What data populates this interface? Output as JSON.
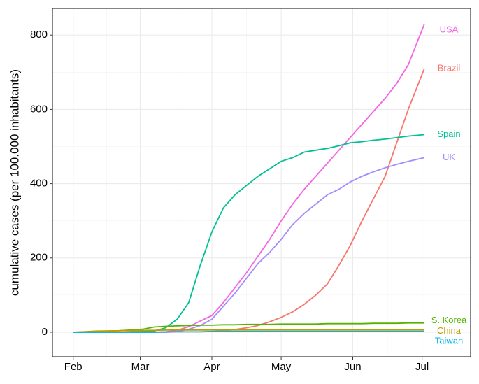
{
  "chart_data": {
    "type": "line",
    "y_label": "cumulative cases (per 100.000 inhabitants)",
    "x": [
      0,
      10,
      20,
      30,
      35,
      40,
      45,
      50,
      55,
      60,
      65,
      70,
      75,
      80,
      85,
      90,
      95,
      100,
      105,
      110,
      115,
      120,
      125,
      130,
      135,
      140,
      145,
      152
    ],
    "xlim": [
      -9,
      172
    ],
    "xticks": [
      {
        "value": 0,
        "label": "Feb"
      },
      {
        "value": 29,
        "label": "Mar"
      },
      {
        "value": 60,
        "label": "Apr"
      },
      {
        "value": 90,
        "label": "May"
      },
      {
        "value": 121,
        "label": "Jun"
      },
      {
        "value": 151,
        "label": "Jul"
      }
    ],
    "ylim": [
      -66,
      872
    ],
    "yticks": [
      0,
      200,
      400,
      600,
      800
    ],
    "grid": true,
    "series": [
      {
        "name": "USA",
        "color": "#f564e3",
        "values": [
          0,
          0,
          0,
          0,
          0,
          1,
          5,
          15,
          30,
          45,
          80,
          120,
          160,
          205,
          250,
          300,
          345,
          385,
          420,
          455,
          490,
          525,
          560,
          595,
          630,
          670,
          720,
          830
        ]
      },
      {
        "name": "Brazil",
        "color": "#f8766d",
        "values": [
          0,
          0,
          0,
          0,
          0,
          0,
          1,
          1,
          1,
          2,
          4,
          7,
          12,
          18,
          28,
          40,
          55,
          75,
          100,
          130,
          180,
          235,
          300,
          360,
          420,
          510,
          600,
          710
        ]
      },
      {
        "name": "Spain",
        "color": "#00c094",
        "values": [
          0,
          0,
          0,
          2,
          3,
          12,
          35,
          80,
          180,
          270,
          335,
          370,
          395,
          420,
          440,
          460,
          470,
          485,
          490,
          495,
          502,
          510,
          513,
          517,
          520,
          524,
          528,
          532
        ]
      },
      {
        "name": "UK",
        "color": "#a58aff",
        "values": [
          0,
          0,
          0,
          0,
          0,
          0,
          2,
          8,
          18,
          35,
          70,
          105,
          145,
          185,
          215,
          250,
          290,
          320,
          345,
          370,
          385,
          405,
          420,
          432,
          443,
          452,
          460,
          470
        ]
      },
      {
        "name": "S. Korea",
        "color": "#53b400",
        "values": [
          0,
          3,
          4,
          8,
          14,
          16,
          17,
          18,
          19,
          19,
          20,
          20,
          21,
          21,
          21,
          22,
          22,
          22,
          22,
          23,
          23,
          23,
          23,
          24,
          24,
          24,
          25,
          25
        ]
      },
      {
        "name": "China",
        "color": "#c49a00",
        "values": [
          0,
          2,
          4,
          5,
          5,
          6,
          6,
          6,
          6,
          6,
          6,
          6,
          6,
          6,
          6,
          6,
          6,
          6,
          6,
          6,
          6,
          6,
          6,
          6,
          6,
          6,
          6,
          6
        ]
      },
      {
        "name": "Taiwan",
        "color": "#00b6eb",
        "values": [
          0,
          0,
          0,
          0,
          0,
          1,
          1,
          1,
          1,
          2,
          2,
          2,
          2,
          2,
          2,
          2,
          2,
          2,
          2,
          2,
          2,
          2,
          2,
          2,
          2,
          2,
          2,
          2
        ]
      }
    ]
  }
}
